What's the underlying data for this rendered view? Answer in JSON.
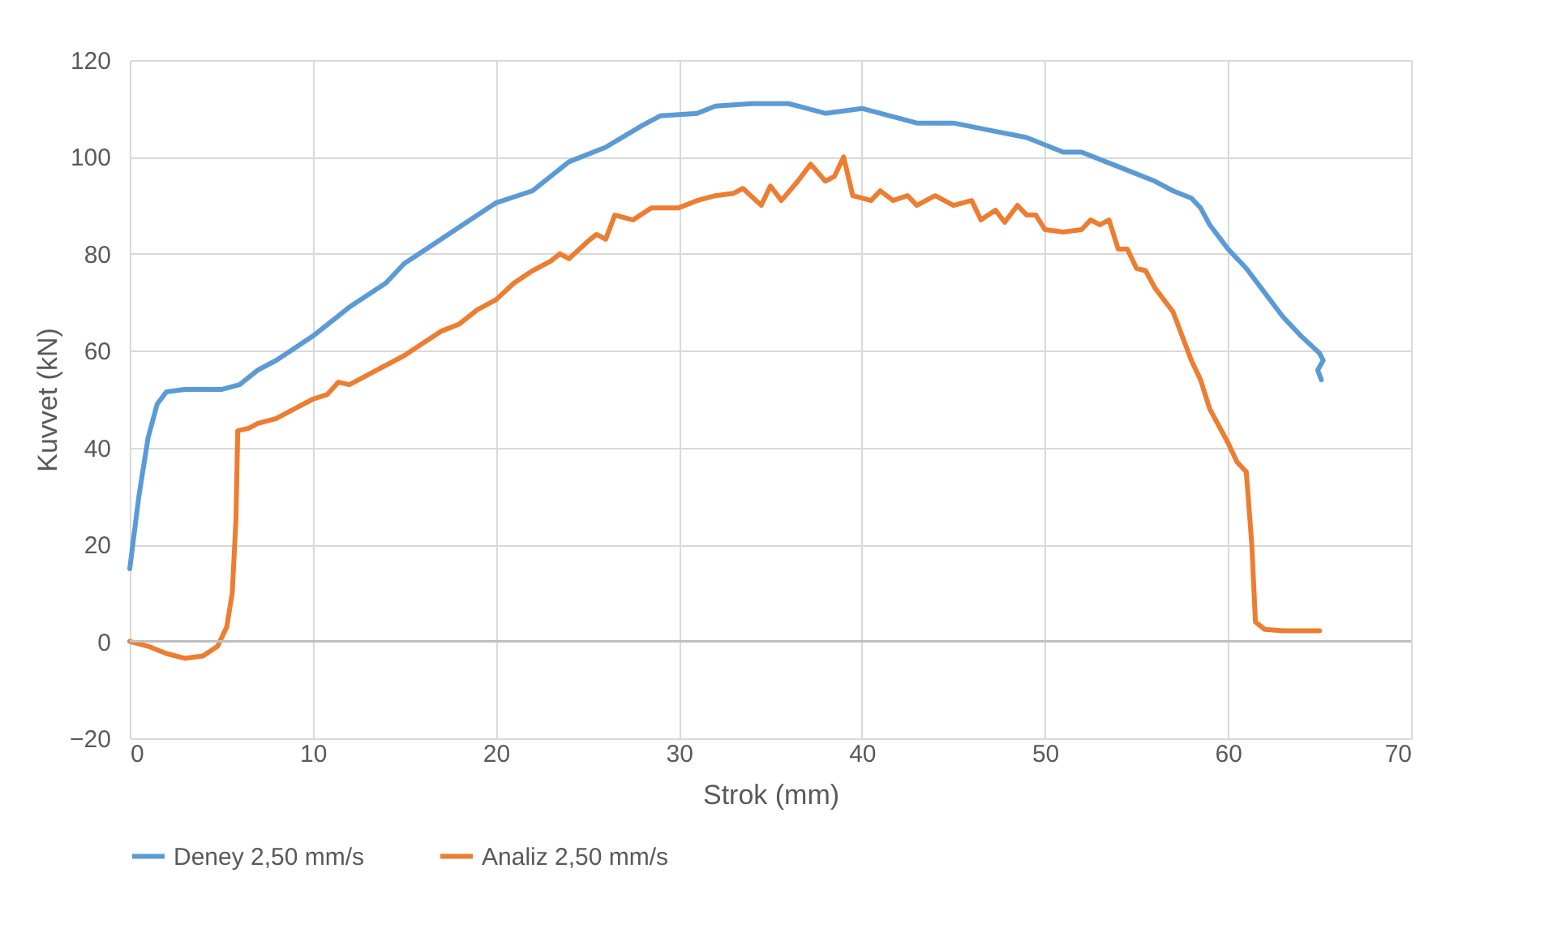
{
  "chart_data": {
    "type": "line",
    "xlabel": "Strok (mm)",
    "ylabel": "Kuvvet (kN)",
    "xlim": [
      0,
      70
    ],
    "xticks": [
      0,
      10,
      20,
      30,
      40,
      50,
      60,
      70
    ],
    "ylim": [
      -20,
      120
    ],
    "yticks": [
      -20,
      0,
      20,
      40,
      60,
      80,
      100,
      120
    ],
    "grid": true,
    "legend": "bottom",
    "marker": "none",
    "line_style": "solid",
    "series": [
      {
        "name": "Deney 2,50 mm/s",
        "color": "#5b9bd5",
        "x": [
          0,
          0.5,
          1,
          1.5,
          2,
          3,
          4,
          5,
          6,
          7,
          8,
          10,
          12,
          14,
          15,
          17,
          19,
          20,
          22,
          24,
          26,
          28,
          29,
          31,
          32,
          34,
          36,
          37,
          38,
          40,
          42,
          43,
          45,
          47,
          49,
          51,
          52,
          54,
          56,
          57,
          58,
          58.5,
          59,
          60,
          61,
          62,
          63,
          64,
          65,
          65.2,
          64.9,
          65.1
        ],
        "values": [
          15,
          30,
          42,
          49,
          51.5,
          52,
          52,
          52,
          53,
          56,
          58,
          63,
          69,
          74,
          78,
          83,
          88,
          90.5,
          93,
          99,
          102,
          106.5,
          108.5,
          109,
          110.5,
          111,
          111,
          110,
          109,
          110,
          108,
          107,
          107,
          105.5,
          104,
          101,
          101,
          98,
          95,
          93,
          91.5,
          89.5,
          86,
          81,
          77,
          72,
          67,
          63,
          59.5,
          58,
          56,
          54
        ]
      },
      {
        "name": "Analiz 2,50 mm/s",
        "color": "#ed7d31",
        "x": [
          0,
          1,
          2,
          3,
          4,
          4.8,
          5.3,
          5.6,
          5.8,
          5.9,
          6.5,
          7,
          8,
          9,
          10,
          10.8,
          11.4,
          12,
          13,
          15,
          16,
          17,
          18,
          19,
          20,
          21,
          22,
          23,
          23.5,
          24,
          25,
          25.5,
          26,
          26.5,
          27.5,
          28.5,
          30,
          31,
          32,
          33,
          33.5,
          34.5,
          35,
          35.6,
          36.5,
          37.2,
          38,
          38.5,
          39,
          39.5,
          40.5,
          41,
          41.7,
          42.5,
          43,
          44,
          45,
          46,
          46.5,
          47.3,
          47.8,
          48.5,
          49,
          49.5,
          50,
          51,
          52,
          52.5,
          53,
          53.5,
          54,
          54.5,
          55,
          55.5,
          56,
          57,
          57.5,
          58,
          58.5,
          59,
          60,
          60.5,
          61,
          61.3,
          61.5,
          62,
          63,
          65
        ],
        "values": [
          0,
          -1,
          -2.5,
          -3.5,
          -3,
          -1,
          3,
          10,
          25,
          43.5,
          44,
          45,
          46,
          48,
          50,
          51,
          53.5,
          53,
          55,
          59,
          61.5,
          64,
          65.5,
          68.5,
          70.5,
          74,
          76.5,
          78.5,
          80,
          79,
          82.5,
          84,
          83,
          88,
          87,
          89.5,
          89.5,
          91,
          92,
          92.5,
          93.5,
          90,
          94,
          91,
          95,
          98.5,
          95,
          96,
          100,
          92,
          91,
          93,
          91,
          92,
          90,
          92,
          90,
          91,
          87,
          89,
          86.5,
          90,
          88,
          88,
          85,
          84.5,
          85,
          87,
          86,
          87,
          81,
          81,
          77,
          76.5,
          73,
          68,
          63,
          58,
          54,
          48,
          41,
          37,
          35,
          20,
          4,
          2.5,
          2.2,
          2.2
        ]
      }
    ]
  }
}
